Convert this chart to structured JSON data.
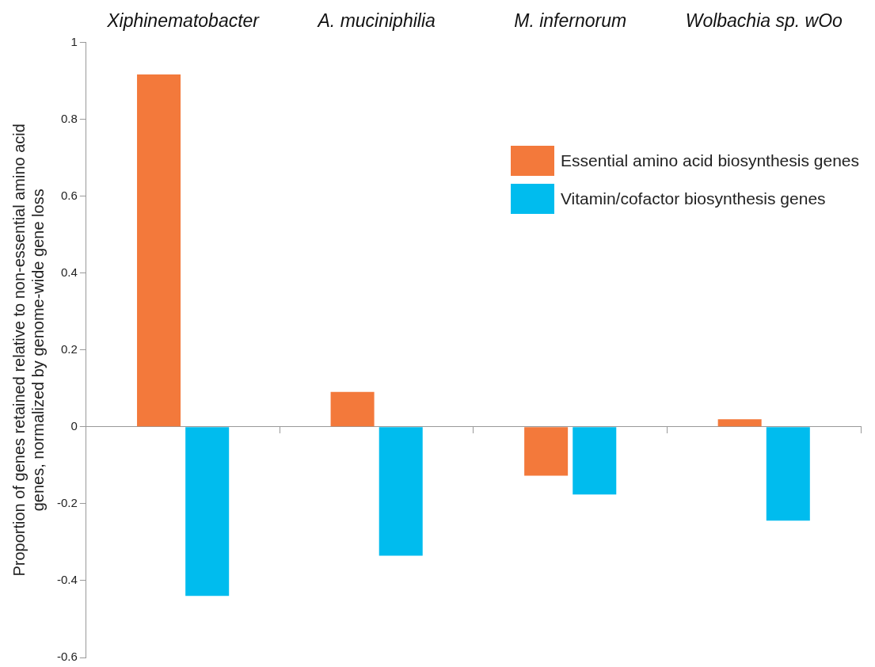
{
  "chart_data": {
    "type": "bar",
    "ylabel": "Proportion of genes retained relative to non-essential amino acid\ngenes, normalized by genome-wide gene loss",
    "categories": [
      "Xiphinematobacter",
      "A. muciniphilia",
      "M. infernorum",
      "Wolbachia sp. wOo"
    ],
    "series": [
      {
        "name": "Essential amino acid biosynthesis genes",
        "color": "#f3793b",
        "values": [
          0.917,
          0.091,
          -0.127,
          0.02
        ]
      },
      {
        "name": "Vitamin/cofactor biosynthesis genes",
        "color": "#00bcee",
        "values": [
          -0.44,
          -0.335,
          -0.176,
          -0.244
        ]
      }
    ],
    "ylim": [
      -0.6,
      1
    ],
    "yticks": [
      -0.6,
      -0.4,
      -0.2,
      0,
      0.2,
      0.4,
      0.6,
      0.8,
      1
    ],
    "legend": "top right"
  }
}
